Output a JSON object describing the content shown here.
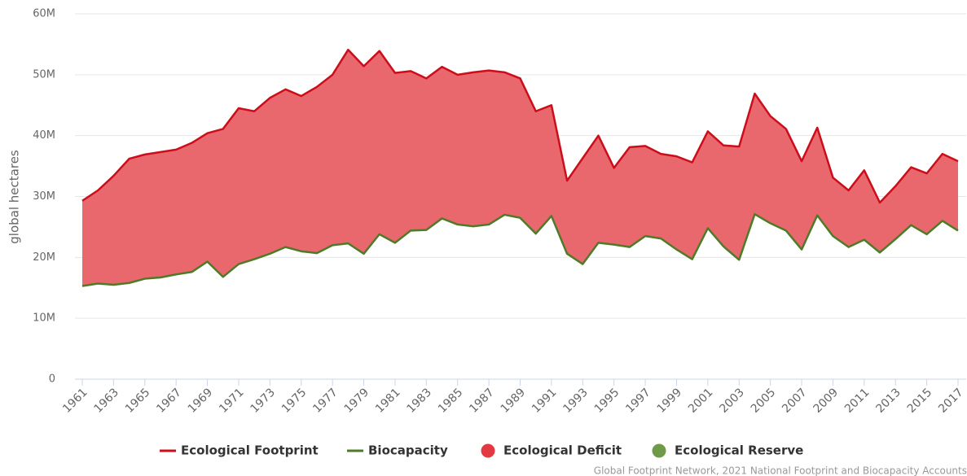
{
  "chart_data": {
    "type": "area_band",
    "y_axis_label": "global hectares",
    "x": [
      1961,
      1962,
      1963,
      1964,
      1965,
      1966,
      1967,
      1968,
      1969,
      1970,
      1971,
      1972,
      1973,
      1974,
      1975,
      1976,
      1977,
      1978,
      1979,
      1980,
      1981,
      1982,
      1983,
      1984,
      1985,
      1986,
      1987,
      1988,
      1989,
      1990,
      1991,
      1992,
      1993,
      1994,
      1995,
      1996,
      1997,
      1998,
      1999,
      2000,
      2001,
      2002,
      2003,
      2004,
      2005,
      2006,
      2007,
      2008,
      2009,
      2010,
      2011,
      2012,
      2013,
      2014,
      2015,
      2016,
      2017
    ],
    "xlim": [
      1961,
      2017
    ],
    "xticks": [
      1961,
      1963,
      1965,
      1967,
      1969,
      1971,
      1973,
      1975,
      1977,
      1979,
      1981,
      1983,
      1985,
      1987,
      1989,
      1991,
      1993,
      1995,
      1997,
      1999,
      2001,
      2003,
      2005,
      2007,
      2009,
      2011,
      2013,
      2015,
      2017
    ],
    "ylim": [
      0,
      60000000
    ],
    "yticks": [
      {
        "value": 0,
        "label": "0"
      },
      {
        "value": 10000000,
        "label": "10M"
      },
      {
        "value": 20000000,
        "label": "20M"
      },
      {
        "value": 30000000,
        "label": "30M"
      },
      {
        "value": 40000000,
        "label": "40M"
      },
      {
        "value": 50000000,
        "label": "50M"
      },
      {
        "value": 60000000,
        "label": "60M"
      }
    ],
    "grid": true,
    "series": [
      {
        "name": "Ecological Footprint",
        "color": "#cc0d1a",
        "values": [
          29300000,
          31000000,
          33400000,
          36200000,
          36900000,
          37300000,
          37700000,
          38800000,
          40400000,
          41100000,
          44500000,
          44000000,
          46200000,
          47600000,
          46500000,
          48000000,
          50000000,
          54100000,
          51400000,
          53900000,
          50300000,
          50600000,
          49400000,
          51300000,
          50000000,
          50400000,
          50700000,
          50400000,
          49400000,
          44000000,
          45000000,
          32600000,
          36300000,
          40000000,
          34700000,
          38100000,
          38300000,
          37000000,
          36600000,
          35600000,
          40700000,
          38400000,
          38200000,
          46900000,
          43200000,
          41100000,
          35800000,
          41300000,
          33100000,
          31000000,
          34300000,
          29000000,
          31700000,
          34800000,
          33800000,
          37000000,
          35800000
        ]
      },
      {
        "name": "Biocapacity",
        "color": "#4f7a28",
        "values": [
          15300000,
          15700000,
          15500000,
          15800000,
          16500000,
          16700000,
          17200000,
          17600000,
          19300000,
          16800000,
          18900000,
          19700000,
          20600000,
          21700000,
          21000000,
          20700000,
          22000000,
          22300000,
          20600000,
          23800000,
          22400000,
          24400000,
          24500000,
          26400000,
          25400000,
          25100000,
          25400000,
          27000000,
          26500000,
          23900000,
          26800000,
          20600000,
          18900000,
          22400000,
          22100000,
          21700000,
          23500000,
          23100000,
          21300000,
          19700000,
          24800000,
          21800000,
          19600000,
          27100000,
          25600000,
          24400000,
          21300000,
          26900000,
          23500000,
          21700000,
          22900000,
          20800000,
          23000000,
          25300000,
          23800000,
          26000000,
          24400000
        ]
      }
    ],
    "areas": [
      {
        "name": "Ecological Deficit",
        "color": "#e23a40",
        "fill": "#e8686e"
      },
      {
        "name": "Ecological Reserve",
        "color": "#6f9a48"
      }
    ],
    "source": "Global Footprint Network, 2021 National Footprint and Biocapacity Accounts"
  }
}
